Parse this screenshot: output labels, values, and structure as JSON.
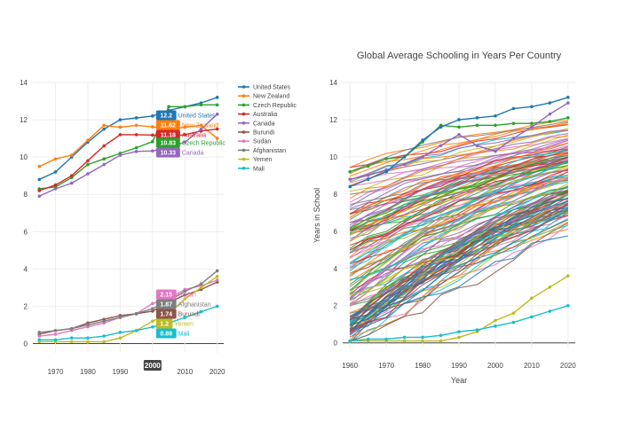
{
  "chart_data": [
    {
      "type": "line",
      "title": "",
      "xlabel": "",
      "ylabel": "",
      "xlim": [
        1963,
        2022
      ],
      "ylim": [
        -0.5,
        14
      ],
      "xticks": [
        "1970",
        "1980",
        "1990",
        "2000",
        "2010",
        "2020"
      ],
      "yticks": [
        "0",
        "2",
        "4",
        "6",
        "8",
        "10",
        "12",
        "14"
      ],
      "x": [
        1965,
        1970,
        1975,
        1980,
        1985,
        1990,
        1995,
        2000,
        2005,
        2010,
        2015,
        2020
      ],
      "hover_x": "2000",
      "legend": "top-right",
      "series": [
        {
          "name": "United States",
          "color": "#1f77b4",
          "values": [
            8.8,
            9.2,
            10.0,
            10.8,
            11.5,
            12.0,
            12.1,
            12.2,
            12.5,
            12.7,
            12.9,
            13.2
          ],
          "hover_value": "12.2"
        },
        {
          "name": "New Zealand",
          "color": "#ff7f0e",
          "values": [
            9.5,
            9.9,
            10.1,
            10.9,
            11.7,
            11.6,
            11.7,
            11.62,
            11.5,
            11.6,
            11.7,
            11.0
          ],
          "hover_value": "11.62"
        },
        {
          "name": "Czech Republic",
          "color": "#2ca02c",
          "values": [
            8.3,
            8.4,
            8.9,
            9.6,
            9.9,
            10.2,
            10.5,
            10.83,
            12.7,
            12.7,
            12.8,
            12.8
          ],
          "hover_value": "10.83"
        },
        {
          "name": "Australia",
          "color": "#d62728",
          "values": [
            8.2,
            8.5,
            9.0,
            9.8,
            10.6,
            11.2,
            11.2,
            11.18,
            11.1,
            11.2,
            11.4,
            11.5
          ],
          "hover_value": "11.18"
        },
        {
          "name": "Canada",
          "color": "#9467bd",
          "values": [
            7.9,
            8.3,
            8.6,
            9.1,
            9.6,
            10.1,
            10.3,
            10.33,
            10.5,
            10.8,
            11.5,
            12.3
          ],
          "hover_value": "10.33"
        },
        {
          "name": "Burundi",
          "color": "#8c564b",
          "values": [
            0.5,
            0.7,
            0.8,
            1.1,
            1.3,
            1.5,
            1.6,
            1.74,
            2.2,
            2.6,
            2.9,
            3.3
          ],
          "hover_value": "1.74"
        },
        {
          "name": "Sudan",
          "color": "#e377c2",
          "values": [
            0.4,
            0.5,
            0.7,
            0.9,
            1.1,
            1.4,
            1.6,
            2.15,
            2.4,
            2.9,
            3.1,
            3.4
          ],
          "hover_value": "2.15"
        },
        {
          "name": "Afghanistan",
          "color": "#7f7f7f",
          "values": [
            0.6,
            0.7,
            0.8,
            1.0,
            1.2,
            1.4,
            1.6,
            1.87,
            2.3,
            2.8,
            3.2,
            3.9
          ],
          "hover_value": "1.87"
        },
        {
          "name": "Yemen",
          "color": "#bcbd22",
          "values": [
            0.1,
            0.1,
            0.1,
            0.1,
            0.1,
            0.3,
            0.7,
            1.2,
            1.6,
            2.4,
            3.0,
            3.6
          ],
          "hover_value": "1.2"
        },
        {
          "name": "Mali",
          "color": "#17becf",
          "values": [
            0.2,
            0.2,
            0.3,
            0.3,
            0.4,
            0.6,
            0.7,
            0.89,
            1.1,
            1.4,
            1.7,
            2.0
          ],
          "hover_value": "0.89"
        }
      ]
    },
    {
      "type": "line",
      "title": "Global Average Schooling in Years Per Country",
      "xlabel": "Year",
      "ylabel": "Years in School",
      "xlim": [
        1958,
        2022
      ],
      "ylim": [
        -0.3,
        14
      ],
      "xticks": [
        "1960",
        "1970",
        "1980",
        "1990",
        "2000",
        "2010",
        "2020"
      ],
      "yticks": [
        "0",
        "2",
        "4",
        "6",
        "8",
        "10",
        "12",
        "14"
      ],
      "x": [
        1960,
        1965,
        1970,
        1975,
        1980,
        1985,
        1990,
        1995,
        2000,
        2005,
        2010,
        2015,
        2020
      ],
      "series_count": 140,
      "highlighted_series": [
        {
          "name": "Czech Republic",
          "color": "#2ca02c",
          "values": [
            9.2,
            9.5,
            9.9,
            10.0,
            10.8,
            11.7,
            11.6,
            11.7,
            11.7,
            11.8,
            11.8,
            11.9,
            12.1
          ]
        },
        {
          "name": "Canada",
          "color": "#9467bd",
          "values": [
            8.8,
            9.0,
            9.3,
            9.6,
            10.0,
            10.6,
            11.2,
            10.6,
            10.3,
            11.0,
            11.6,
            12.3,
            12.9
          ]
        },
        {
          "name": "United States",
          "color": "#1f77b4",
          "values": [
            8.4,
            8.8,
            9.2,
            10.0,
            10.9,
            11.6,
            12.0,
            12.1,
            12.2,
            12.6,
            12.7,
            12.9,
            13.2
          ]
        },
        {
          "name": "Yemen",
          "color": "#bcbd22",
          "values": [
            0.1,
            0.1,
            0.1,
            0.1,
            0.1,
            0.1,
            0.3,
            0.6,
            1.2,
            1.6,
            2.4,
            3.0,
            3.6
          ]
        },
        {
          "name": "Mali",
          "color": "#17becf",
          "values": [
            0.1,
            0.2,
            0.2,
            0.3,
            0.3,
            0.4,
            0.6,
            0.7,
            0.9,
            1.1,
            1.4,
            1.7,
            2.0
          ]
        }
      ]
    }
  ]
}
